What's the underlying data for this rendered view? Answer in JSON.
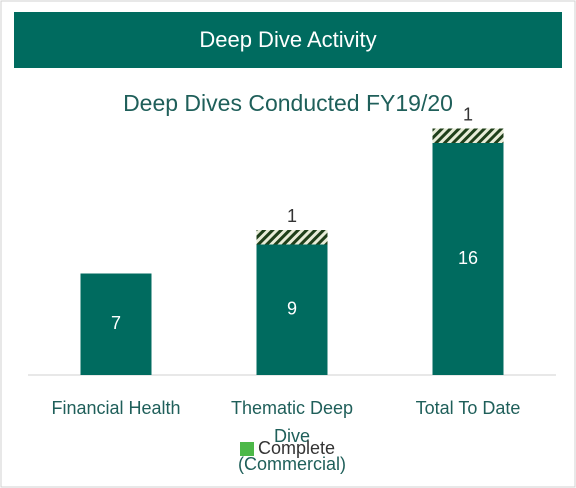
{
  "header": {
    "title": "Deep Dive Activity"
  },
  "chart_data": {
    "type": "stacked_bar",
    "title": "Deep Dives Conducted FY19/20",
    "categories": [
      "Financial Health",
      "Thematic Deep Dive (Commercial)",
      "Total To Date"
    ],
    "series": [
      {
        "name": "Complete",
        "color": "#006b5f",
        "legend_color": "#4cb848",
        "values": [
          7,
          9,
          16
        ]
      },
      {
        "color": "hatch",
        "values": [
          null,
          1,
          1
        ]
      }
    ]
  }
}
